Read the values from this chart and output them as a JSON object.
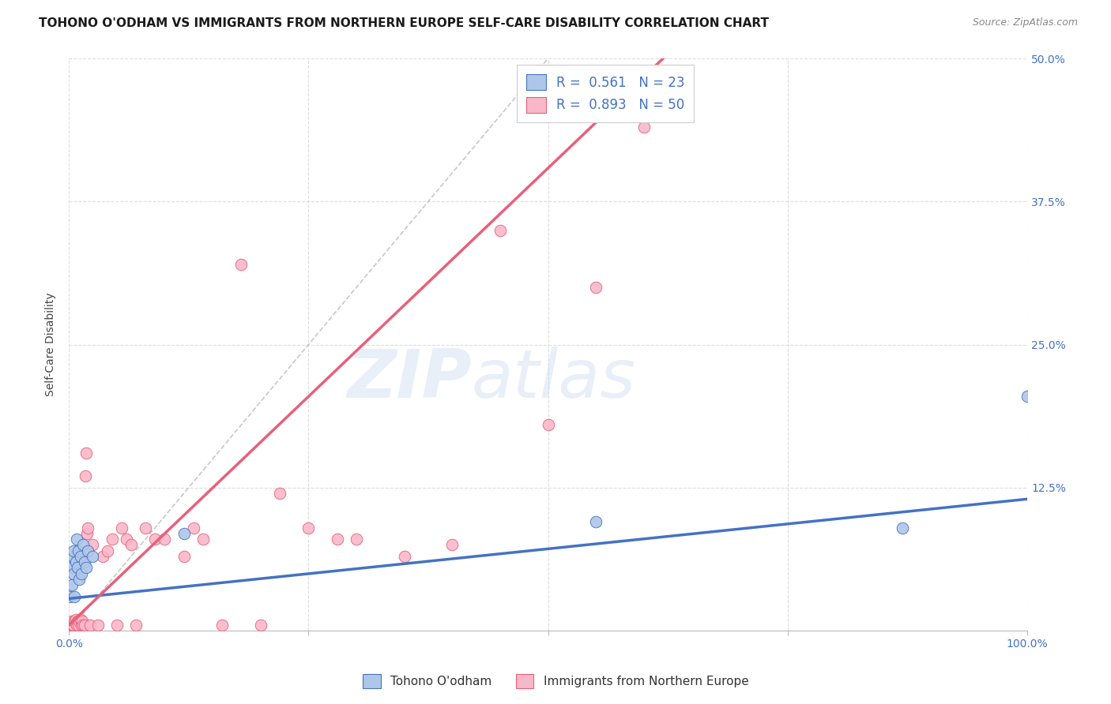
{
  "title": "TOHONO O'ODHAM VS IMMIGRANTS FROM NORTHERN EUROPE SELF-CARE DISABILITY CORRELATION CHART",
  "source": "Source: ZipAtlas.com",
  "ylabel": "Self-Care Disability",
  "xlim": [
    0,
    1.0
  ],
  "ylim": [
    0,
    0.5
  ],
  "watermark": "ZIPatlas",
  "blue_R": 0.561,
  "blue_N": 23,
  "pink_R": 0.893,
  "pink_N": 50,
  "blue_color": "#aec6e8",
  "pink_color": "#f9b8ca",
  "blue_line_color": "#4472c4",
  "pink_line_color": "#e8607a",
  "diagonal_color": "#c8c8c8",
  "blue_scatter_x": [
    0.001,
    0.002,
    0.003,
    0.004,
    0.005,
    0.005,
    0.006,
    0.007,
    0.008,
    0.009,
    0.01,
    0.011,
    0.012,
    0.013,
    0.015,
    0.016,
    0.018,
    0.02,
    0.025,
    0.12,
    0.55,
    0.87,
    1.0
  ],
  "blue_scatter_y": [
    0.03,
    0.055,
    0.04,
    0.065,
    0.05,
    0.07,
    0.03,
    0.06,
    0.08,
    0.055,
    0.07,
    0.045,
    0.065,
    0.05,
    0.075,
    0.06,
    0.055,
    0.07,
    0.065,
    0.085,
    0.095,
    0.09,
    0.205
  ],
  "pink_scatter_x": [
    0.001,
    0.002,
    0.003,
    0.004,
    0.005,
    0.006,
    0.007,
    0.008,
    0.009,
    0.01,
    0.011,
    0.012,
    0.013,
    0.014,
    0.015,
    0.016,
    0.017,
    0.018,
    0.019,
    0.02,
    0.022,
    0.025,
    0.03,
    0.035,
    0.04,
    0.045,
    0.05,
    0.055,
    0.06,
    0.065,
    0.07,
    0.08,
    0.09,
    0.1,
    0.12,
    0.13,
    0.14,
    0.16,
    0.18,
    0.2,
    0.22,
    0.25,
    0.28,
    0.3,
    0.35,
    0.4,
    0.45,
    0.5,
    0.55,
    0.6
  ],
  "pink_scatter_y": [
    0.005,
    0.005,
    0.008,
    0.005,
    0.005,
    0.008,
    0.01,
    0.005,
    0.008,
    0.005,
    0.008,
    0.01,
    0.005,
    0.008,
    0.005,
    0.005,
    0.135,
    0.155,
    0.085,
    0.09,
    0.005,
    0.075,
    0.005,
    0.065,
    0.07,
    0.08,
    0.005,
    0.09,
    0.08,
    0.075,
    0.005,
    0.09,
    0.08,
    0.08,
    0.065,
    0.09,
    0.08,
    0.005,
    0.32,
    0.005,
    0.12,
    0.09,
    0.08,
    0.08,
    0.065,
    0.075,
    0.35,
    0.18,
    0.3,
    0.44
  ],
  "blue_line_x0": 0.0,
  "blue_line_y0": 0.028,
  "blue_line_x1": 1.0,
  "blue_line_y1": 0.115,
  "pink_line_x0": 0.0,
  "pink_line_y0": 0.005,
  "pink_line_x1": 0.62,
  "pink_line_y1": 0.5,
  "title_fontsize": 11,
  "axis_fontsize": 10,
  "tick_fontsize": 10
}
